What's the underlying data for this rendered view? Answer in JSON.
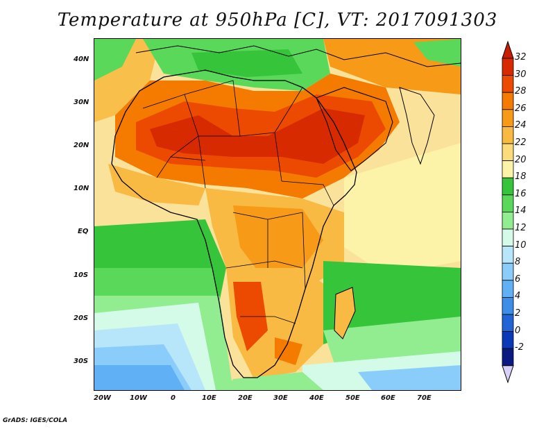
{
  "title": "Temperature at 950hPa [C], VT: 2017091303",
  "footer": "GrADS: IGES/COLA",
  "map": {
    "lon_range": [
      -23,
      80
    ],
    "lat_range": [
      -36,
      46
    ],
    "lat_ticks": [
      "40N",
      "30N",
      "20N",
      "10N",
      "EQ",
      "10S",
      "20S",
      "30S"
    ],
    "lon_ticks": [
      "20W",
      "10W",
      "0",
      "10E",
      "20E",
      "30E",
      "40E",
      "50E",
      "60E",
      "70E"
    ]
  },
  "colorbar": {
    "labels": [
      "32",
      "30",
      "28",
      "26",
      "24",
      "22",
      "20",
      "18",
      "16",
      "14",
      "12",
      "10",
      "8",
      "6",
      "4",
      "2",
      "0",
      "-2"
    ],
    "colors": [
      "#d72a00",
      "#ec4a00",
      "#f57a00",
      "#f69a18",
      "#f8ba42",
      "#fbdc7a",
      "#fcf3a8",
      "#35c43a",
      "#5ad85a",
      "#92ec90",
      "#d4fae8",
      "#b7e6fb",
      "#8bcdfa",
      "#5fb0f5",
      "#3d8ee9",
      "#2064d6",
      "#0a39b8",
      "#0a1a80"
    ],
    "top_triangle_color": "#c81e00",
    "bottom_triangle_color": "#d8d0f8"
  }
}
